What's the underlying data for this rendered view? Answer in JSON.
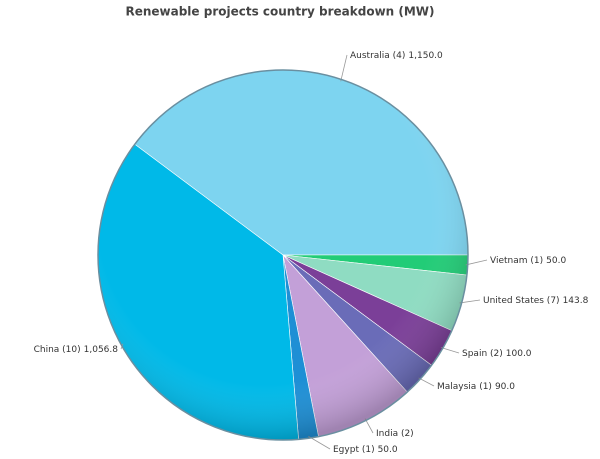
{
  "chart_data": {
    "type": "pie",
    "title": "Renewable projects country breakdown (MW)",
    "categories": [
      "Australia (4)",
      "Vietnam (1)",
      "United States (7)",
      "Spain (2)",
      "Malaysia (1)",
      "India (2)",
      "Egypt (1)",
      "China (10)"
    ],
    "values": [
      1150.0,
      50.0,
      143.8,
      100.0,
      90.0,
      250,
      50.0,
      1056.8
    ],
    "value_labels": [
      "1,150.0",
      "50.0",
      "143.8",
      "100.0",
      "90.0",
      null,
      "50.0",
      "1,056.8"
    ],
    "colors": [
      "#7dd4f0",
      "#22cc77",
      "#8fdcc2",
      "#7b3f98",
      "#6a6cb8",
      "#c3a0d8",
      "#1e8fd5",
      "#00b9e8"
    ]
  }
}
